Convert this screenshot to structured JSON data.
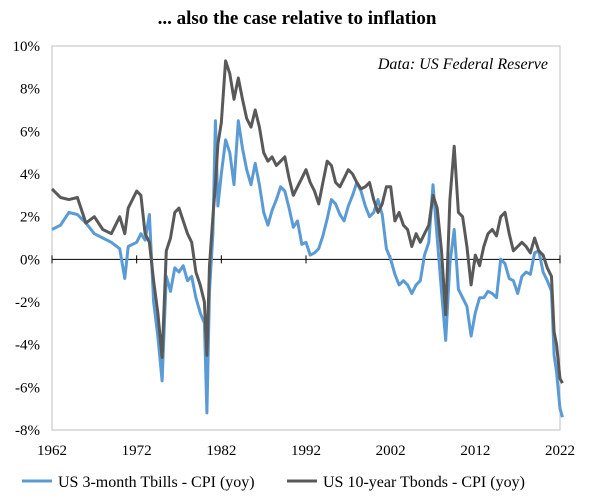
{
  "chart_data": {
    "type": "line",
    "title": "... also the case relative to inflation",
    "annotation": "Data: US Federal Reserve",
    "xlabel": "",
    "ylabel": "",
    "xlim": [
      1962,
      2022
    ],
    "ylim": [
      -8,
      10
    ],
    "x_ticks": [
      1962,
      1972,
      1982,
      1992,
      2002,
      2012,
      2022
    ],
    "y_ticks": [
      -8,
      -6,
      -4,
      -2,
      0,
      2,
      4,
      6,
      8,
      10
    ],
    "y_tick_labels": [
      "-8%",
      "-6%",
      "-4%",
      "-2%",
      "0%",
      "2%",
      "4%",
      "6%",
      "8%",
      "10%"
    ],
    "grid": false,
    "legend_position": "bottom",
    "series": [
      {
        "name": "US 3-month Tbills - CPI (yoy)",
        "color": "#5b9bd5",
        "points": [
          [
            1962.0,
            1.4
          ],
          [
            1963.0,
            1.6
          ],
          [
            1964.0,
            2.2
          ],
          [
            1965.0,
            2.1
          ],
          [
            1966.0,
            1.7
          ],
          [
            1967.0,
            1.2
          ],
          [
            1968.0,
            1.0
          ],
          [
            1969.0,
            0.8
          ],
          [
            1970.0,
            0.5
          ],
          [
            1970.6,
            -0.9
          ],
          [
            1971.0,
            0.6
          ],
          [
            1972.0,
            0.8
          ],
          [
            1972.5,
            1.2
          ],
          [
            1973.0,
            0.9
          ],
          [
            1973.5,
            2.1
          ],
          [
            1974.0,
            -2.0
          ],
          [
            1974.5,
            -3.6
          ],
          [
            1975.0,
            -5.7
          ],
          [
            1975.5,
            -0.8
          ],
          [
            1976.0,
            -1.5
          ],
          [
            1976.5,
            -0.4
          ],
          [
            1977.0,
            -0.6
          ],
          [
            1977.5,
            -0.3
          ],
          [
            1978.0,
            -1.0
          ],
          [
            1978.5,
            -0.8
          ],
          [
            1979.0,
            -1.8
          ],
          [
            1979.5,
            -2.5
          ],
          [
            1980.0,
            -3.0
          ],
          [
            1980.3,
            -7.2
          ],
          [
            1980.6,
            -1.5
          ],
          [
            1981.0,
            1.2
          ],
          [
            1981.3,
            6.5
          ],
          [
            1981.6,
            2.5
          ],
          [
            1982.0,
            4.0
          ],
          [
            1982.5,
            5.6
          ],
          [
            1983.0,
            5.0
          ],
          [
            1983.5,
            3.5
          ],
          [
            1984.0,
            6.5
          ],
          [
            1984.5,
            5.2
          ],
          [
            1985.0,
            4.2
          ],
          [
            1985.5,
            3.5
          ],
          [
            1986.0,
            4.5
          ],
          [
            1986.5,
            3.5
          ],
          [
            1987.0,
            2.2
          ],
          [
            1987.5,
            1.6
          ],
          [
            1988.0,
            2.3
          ],
          [
            1988.5,
            2.8
          ],
          [
            1989.0,
            3.4
          ],
          [
            1989.5,
            3.2
          ],
          [
            1990.0,
            2.4
          ],
          [
            1990.5,
            1.5
          ],
          [
            1991.0,
            1.8
          ],
          [
            1991.5,
            0.7
          ],
          [
            1992.0,
            0.8
          ],
          [
            1992.5,
            0.2
          ],
          [
            1993.0,
            0.3
          ],
          [
            1993.5,
            0.5
          ],
          [
            1994.0,
            1.1
          ],
          [
            1994.5,
            1.9
          ],
          [
            1995.0,
            2.8
          ],
          [
            1995.5,
            2.6
          ],
          [
            1996.0,
            2.1
          ],
          [
            1996.5,
            1.8
          ],
          [
            1997.0,
            2.5
          ],
          [
            1997.5,
            3.0
          ],
          [
            1998.0,
            3.6
          ],
          [
            1998.5,
            3.2
          ],
          [
            1999.0,
            2.5
          ],
          [
            1999.5,
            2.0
          ],
          [
            2000.0,
            2.2
          ],
          [
            2000.5,
            2.8
          ],
          [
            2001.0,
            2.1
          ],
          [
            2001.5,
            0.5
          ],
          [
            2002.0,
            0.0
          ],
          [
            2002.5,
            -0.7
          ],
          [
            2003.0,
            -1.2
          ],
          [
            2003.5,
            -1.0
          ],
          [
            2004.0,
            -1.2
          ],
          [
            2004.5,
            -1.6
          ],
          [
            2005.0,
            -1.2
          ],
          [
            2005.5,
            -1.0
          ],
          [
            2006.0,
            0.2
          ],
          [
            2006.5,
            0.8
          ],
          [
            2007.0,
            3.5
          ],
          [
            2007.5,
            1.0
          ],
          [
            2008.0,
            -1.5
          ],
          [
            2008.5,
            -3.8
          ],
          [
            2009.0,
            -0.2
          ],
          [
            2009.5,
            1.4
          ],
          [
            2010.0,
            -1.4
          ],
          [
            2010.5,
            -1.8
          ],
          [
            2011.0,
            -2.2
          ],
          [
            2011.5,
            -3.6
          ],
          [
            2012.0,
            -2.5
          ],
          [
            2012.5,
            -1.8
          ],
          [
            2013.0,
            -1.8
          ],
          [
            2013.5,
            -1.5
          ],
          [
            2014.0,
            -1.6
          ],
          [
            2014.5,
            -1.8
          ],
          [
            2015.0,
            0.0
          ],
          [
            2015.5,
            -0.2
          ],
          [
            2016.0,
            -0.9
          ],
          [
            2016.5,
            -1.0
          ],
          [
            2017.0,
            -1.6
          ],
          [
            2017.5,
            -0.8
          ],
          [
            2018.0,
            -0.6
          ],
          [
            2018.5,
            -0.7
          ],
          [
            2019.0,
            0.3
          ],
          [
            2019.5,
            0.4
          ],
          [
            2020.0,
            -0.6
          ],
          [
            2020.5,
            -1.0
          ],
          [
            2021.0,
            -1.5
          ],
          [
            2021.3,
            -4.5
          ],
          [
            2021.6,
            -5.3
          ],
          [
            2022.0,
            -7.0
          ],
          [
            2022.3,
            -7.4
          ]
        ]
      },
      {
        "name": "US 10-year Tbonds - CPI (yoy)",
        "color": "#595959",
        "points": [
          [
            1962.0,
            3.3
          ],
          [
            1963.0,
            2.9
          ],
          [
            1964.0,
            2.8
          ],
          [
            1965.0,
            2.9
          ],
          [
            1966.0,
            1.7
          ],
          [
            1967.0,
            2.0
          ],
          [
            1968.0,
            1.4
          ],
          [
            1969.0,
            1.2
          ],
          [
            1970.0,
            2.0
          ],
          [
            1970.6,
            1.2
          ],
          [
            1971.0,
            2.4
          ],
          [
            1972.0,
            3.2
          ],
          [
            1972.5,
            3.0
          ],
          [
            1973.0,
            1.2
          ],
          [
            1973.5,
            0.8
          ],
          [
            1974.0,
            -1.0
          ],
          [
            1974.5,
            -2.5
          ],
          [
            1975.0,
            -4.6
          ],
          [
            1975.5,
            0.4
          ],
          [
            1976.0,
            1.0
          ],
          [
            1976.5,
            2.2
          ],
          [
            1977.0,
            2.4
          ],
          [
            1977.5,
            1.8
          ],
          [
            1978.0,
            1.2
          ],
          [
            1978.5,
            0.8
          ],
          [
            1979.0,
            -0.6
          ],
          [
            1979.5,
            -1.2
          ],
          [
            1980.0,
            -2.0
          ],
          [
            1980.3,
            -4.5
          ],
          [
            1980.6,
            -0.3
          ],
          [
            1981.0,
            2.0
          ],
          [
            1981.3,
            3.5
          ],
          [
            1981.6,
            5.4
          ],
          [
            1982.0,
            6.4
          ],
          [
            1982.5,
            9.3
          ],
          [
            1983.0,
            8.7
          ],
          [
            1983.5,
            7.5
          ],
          [
            1984.0,
            8.5
          ],
          [
            1984.5,
            7.5
          ],
          [
            1985.0,
            6.6
          ],
          [
            1985.5,
            6.2
          ],
          [
            1986.0,
            7.0
          ],
          [
            1986.5,
            6.2
          ],
          [
            1987.0,
            5.0
          ],
          [
            1987.5,
            4.6
          ],
          [
            1988.0,
            4.8
          ],
          [
            1988.5,
            4.4
          ],
          [
            1989.0,
            4.6
          ],
          [
            1989.5,
            4.8
          ],
          [
            1990.0,
            3.8
          ],
          [
            1990.5,
            3.0
          ],
          [
            1991.0,
            3.4
          ],
          [
            1991.5,
            3.8
          ],
          [
            1992.0,
            4.2
          ],
          [
            1992.5,
            3.6
          ],
          [
            1993.0,
            3.2
          ],
          [
            1993.5,
            2.6
          ],
          [
            1994.0,
            3.6
          ],
          [
            1994.5,
            4.6
          ],
          [
            1995.0,
            4.4
          ],
          [
            1995.5,
            3.6
          ],
          [
            1996.0,
            3.4
          ],
          [
            1996.5,
            3.8
          ],
          [
            1997.0,
            4.2
          ],
          [
            1997.5,
            4.0
          ],
          [
            1998.0,
            3.6
          ],
          [
            1998.5,
            3.3
          ],
          [
            1999.0,
            3.4
          ],
          [
            1999.5,
            3.6
          ],
          [
            2000.0,
            2.8
          ],
          [
            2000.5,
            2.2
          ],
          [
            2001.0,
            2.6
          ],
          [
            2001.5,
            3.4
          ],
          [
            2002.0,
            3.4
          ],
          [
            2002.5,
            1.8
          ],
          [
            2003.0,
            2.2
          ],
          [
            2003.5,
            1.6
          ],
          [
            2004.0,
            1.4
          ],
          [
            2004.5,
            0.6
          ],
          [
            2005.0,
            1.2
          ],
          [
            2005.5,
            0.8
          ],
          [
            2006.0,
            1.2
          ],
          [
            2006.5,
            1.6
          ],
          [
            2007.0,
            3.0
          ],
          [
            2007.5,
            2.4
          ],
          [
            2008.0,
            0.4
          ],
          [
            2008.5,
            -2.6
          ],
          [
            2009.0,
            2.8
          ],
          [
            2009.5,
            5.3
          ],
          [
            2010.0,
            2.2
          ],
          [
            2010.5,
            2.0
          ],
          [
            2011.0,
            0.6
          ],
          [
            2011.5,
            -1.2
          ],
          [
            2012.0,
            0.2
          ],
          [
            2012.5,
            -0.3
          ],
          [
            2013.0,
            0.6
          ],
          [
            2013.5,
            1.2
          ],
          [
            2014.0,
            1.4
          ],
          [
            2014.5,
            1.1
          ],
          [
            2015.0,
            2.0
          ],
          [
            2015.5,
            2.2
          ],
          [
            2016.0,
            1.2
          ],
          [
            2016.5,
            0.4
          ],
          [
            2017.0,
            0.6
          ],
          [
            2017.5,
            0.8
          ],
          [
            2018.0,
            0.6
          ],
          [
            2018.5,
            0.3
          ],
          [
            2019.0,
            1.0
          ],
          [
            2019.5,
            0.4
          ],
          [
            2020.0,
            0.2
          ],
          [
            2020.5,
            -0.4
          ],
          [
            2021.0,
            -0.8
          ],
          [
            2021.3,
            -3.4
          ],
          [
            2021.6,
            -4.0
          ],
          [
            2022.0,
            -5.6
          ],
          [
            2022.3,
            -5.8
          ]
        ]
      }
    ]
  }
}
